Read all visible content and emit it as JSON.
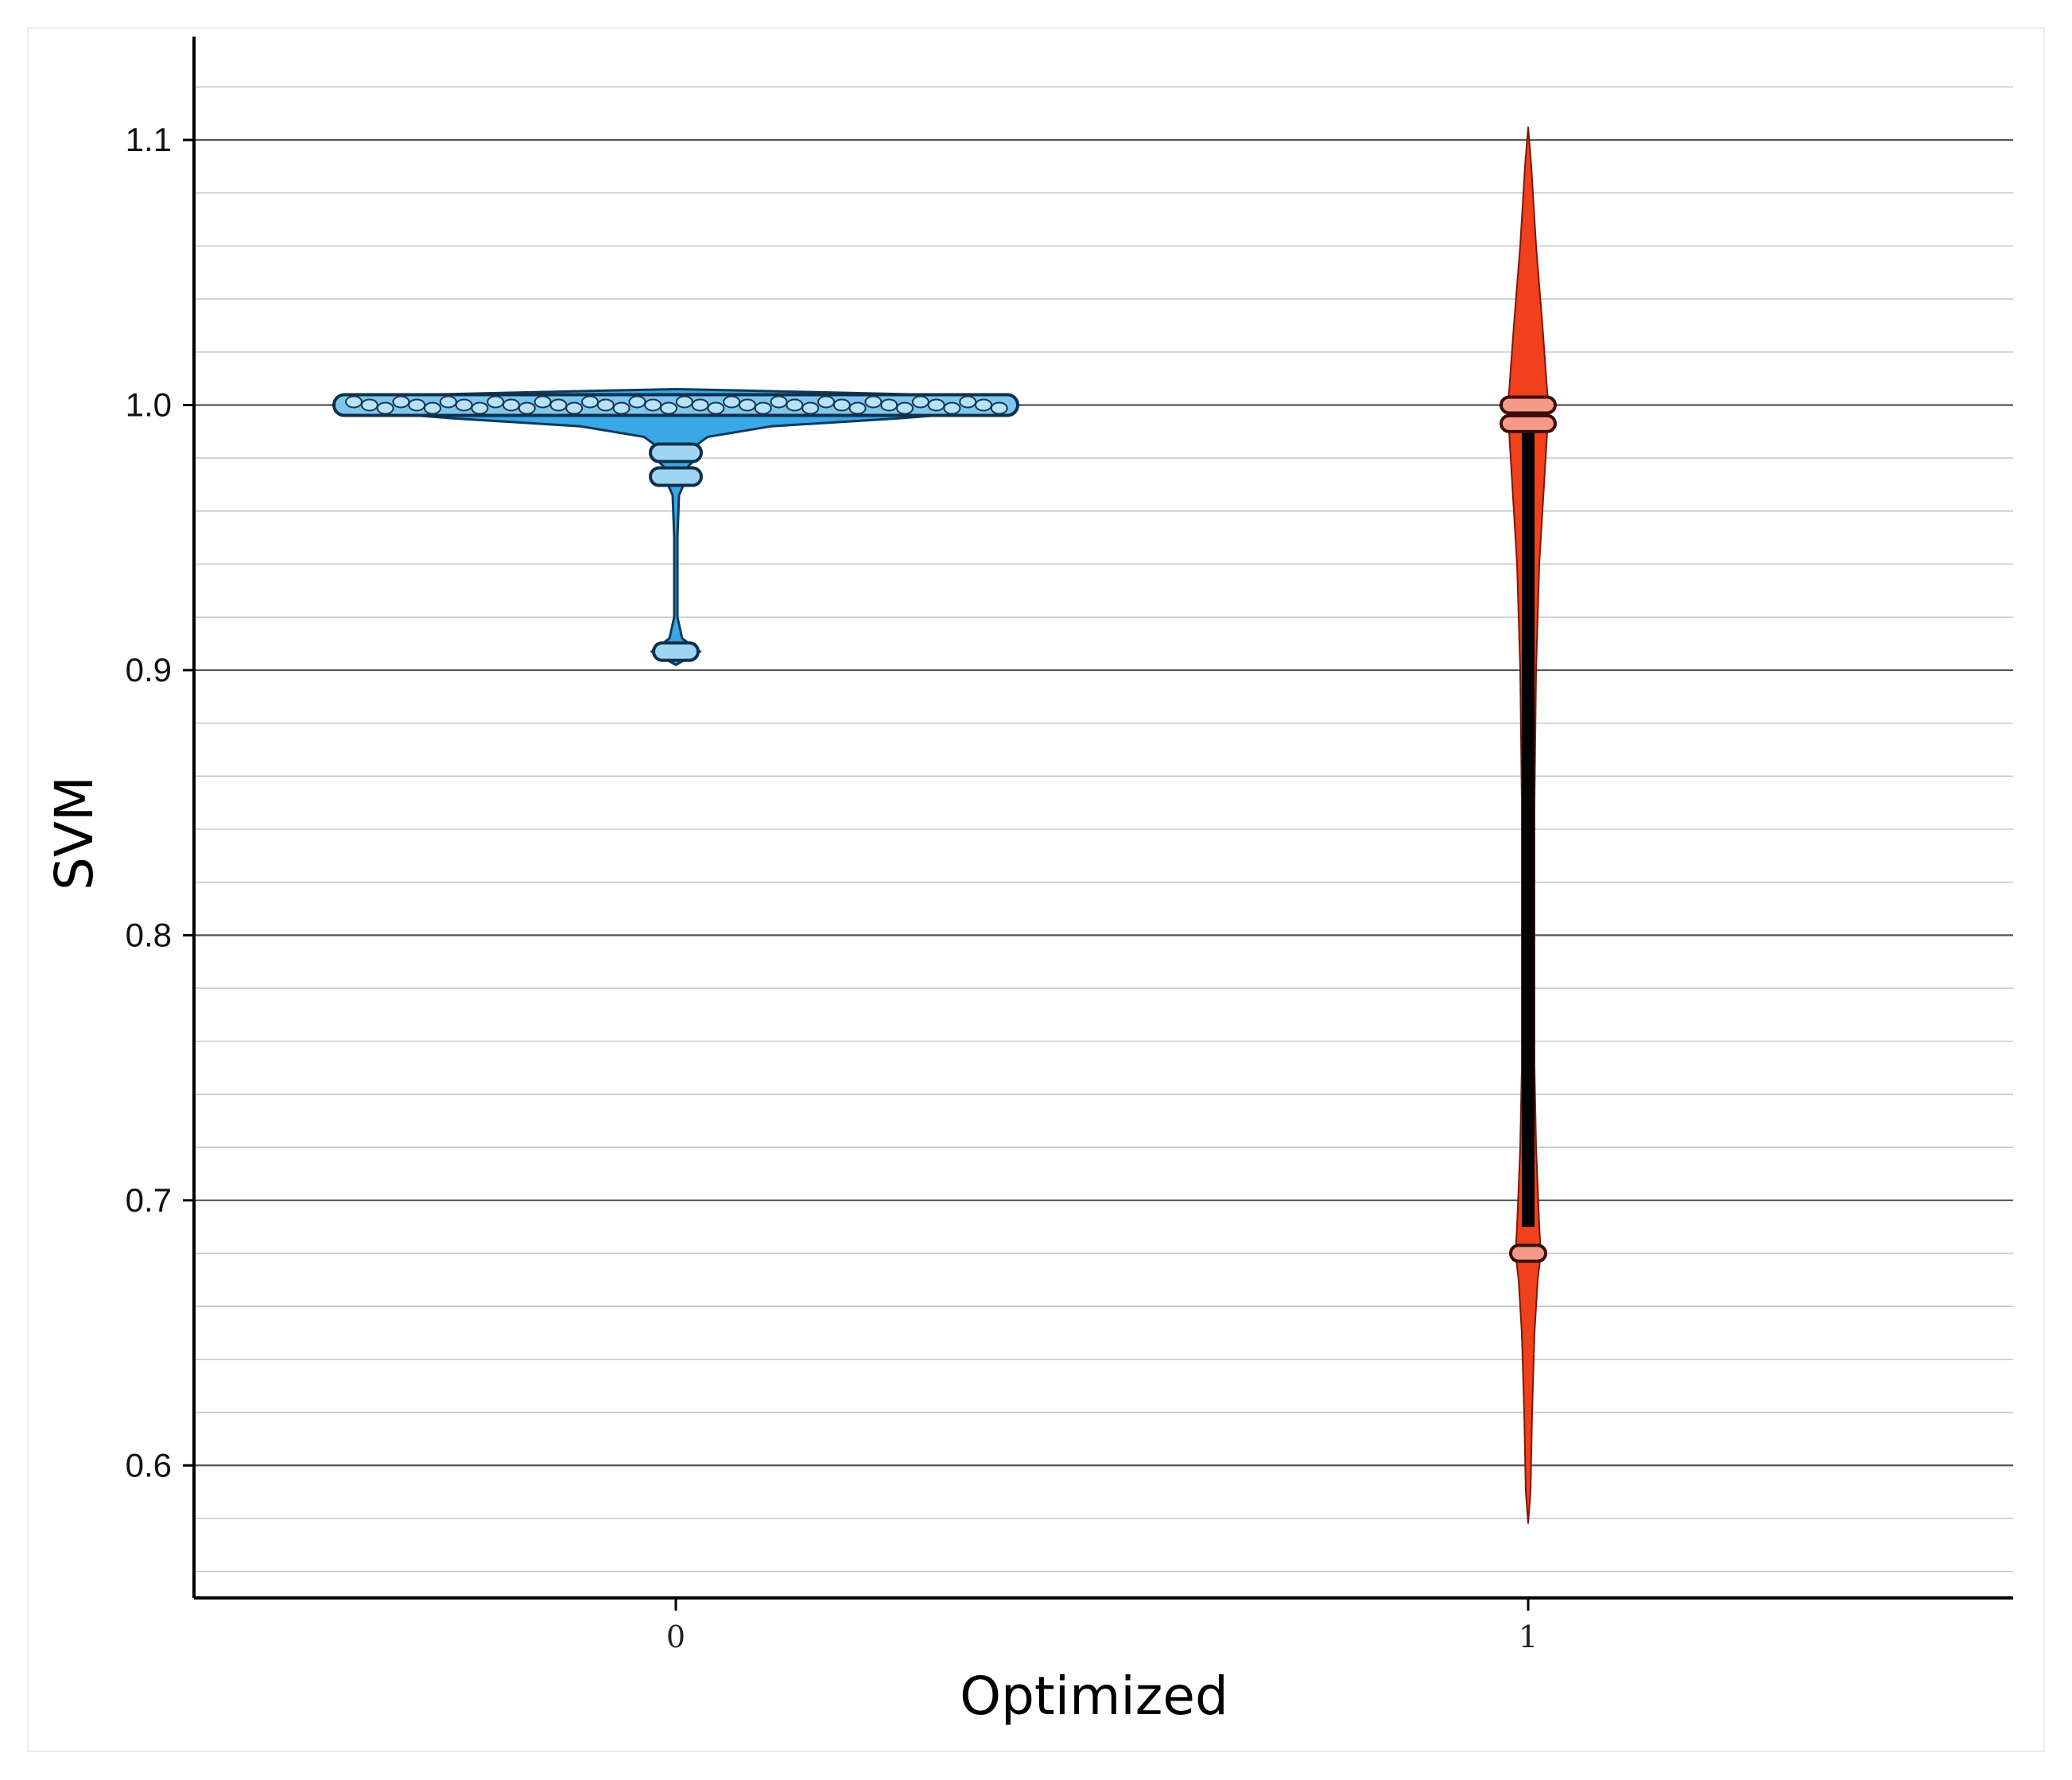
{
  "chart_data": {
    "type": "violin",
    "xlabel": "Optimized",
    "ylabel": "SVM",
    "categories": [
      "0",
      "1"
    ],
    "ylim": [
      0.55,
      1.13
    ],
    "yticks": [
      "1.1",
      "1.0",
      "0.9",
      "0.8",
      "0.7",
      "0.6"
    ],
    "grid": true,
    "colors": {
      "0": "#3aa8e6",
      "1": "#f0401c",
      "grid": "#c8c8c8",
      "axis": "#000000"
    },
    "series": [
      {
        "category": "0",
        "min": 0.902,
        "max": 1.006,
        "median": 1.0,
        "clusters": [
          1.0,
          0.982,
          0.973,
          0.907
        ]
      },
      {
        "category": "1",
        "min": 0.578,
        "max": 1.105,
        "median": 1.0,
        "clusters": [
          1.0,
          0.993,
          0.68
        ]
      }
    ]
  }
}
